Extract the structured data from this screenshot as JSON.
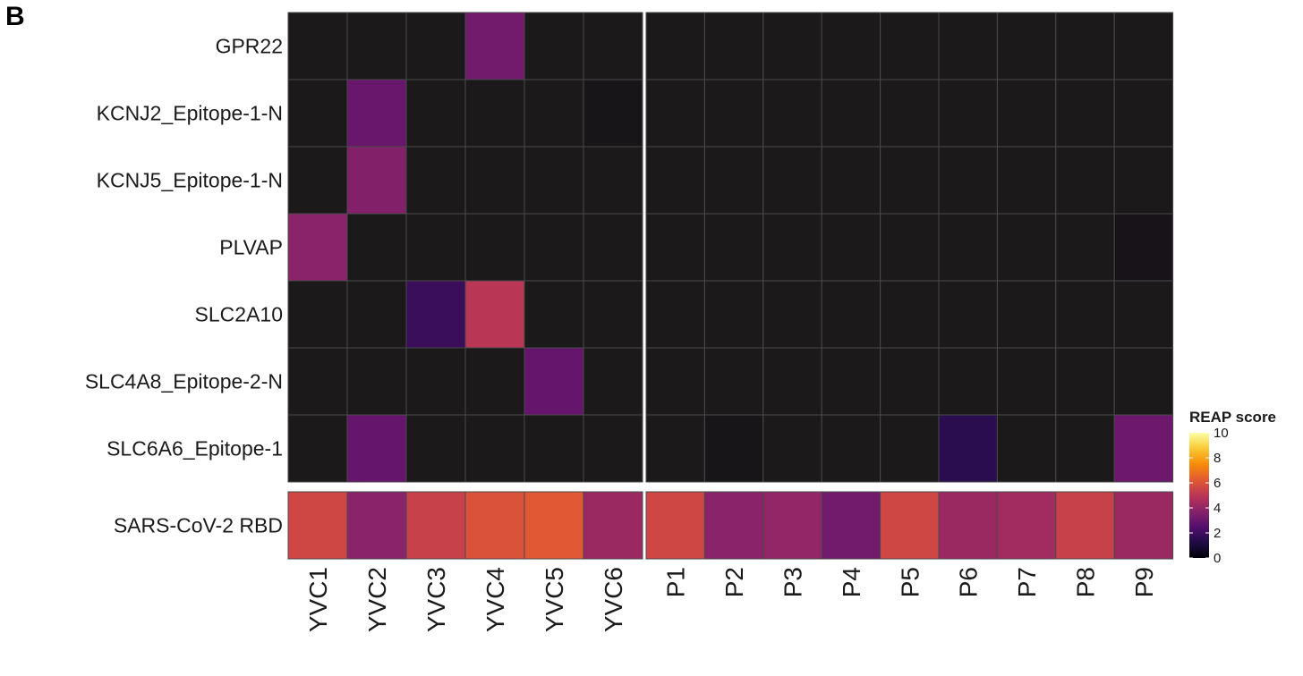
{
  "panel_label": "B",
  "chart_data": {
    "type": "heatmap",
    "title": "",
    "columns": [
      "YVC1",
      "YVC2",
      "YVC3",
      "YVC4",
      "YVC5",
      "YVC6",
      "P1",
      "P2",
      "P3",
      "P4",
      "P5",
      "P6",
      "P7",
      "P8",
      "P9"
    ],
    "column_groups": [
      {
        "columns": [
          "YVC1",
          "YVC2",
          "YVC3",
          "YVC4",
          "YVC5",
          "YVC6"
        ]
      },
      {
        "columns": [
          "P1",
          "P2",
          "P3",
          "P4",
          "P5",
          "P6",
          "P7",
          "P8",
          "P9"
        ]
      }
    ],
    "row_groups": [
      {
        "rows": [
          "GPR22",
          "KCNJ2_Epitope-1-N",
          "KCNJ5_Epitope-1-N",
          "PLVAP",
          "SLC2A10",
          "SLC4A8_Epitope-2-N",
          "SLC6A6_Epitope-1"
        ],
        "values": [
          [
            0.0,
            0.0,
            0.0,
            3.2,
            0.0,
            0.0,
            0.0,
            0.0,
            0.0,
            0.0,
            0.0,
            0.0,
            0.0,
            0.0,
            0.0
          ],
          [
            0.0,
            3.0,
            0.0,
            0.0,
            0.0,
            0.2,
            0.0,
            0.0,
            0.0,
            0.0,
            0.0,
            0.0,
            0.0,
            0.0,
            0.0
          ],
          [
            0.0,
            3.6,
            0.0,
            0.0,
            0.0,
            0.0,
            0.0,
            0.0,
            0.0,
            0.0,
            0.0,
            0.0,
            0.0,
            0.0,
            0.0
          ],
          [
            3.8,
            0.0,
            0.0,
            0.0,
            0.0,
            0.0,
            0.0,
            0.0,
            0.0,
            0.0,
            0.0,
            0.0,
            0.0,
            0.0,
            0.3
          ],
          [
            0.0,
            0.0,
            1.9,
            5.0,
            0.0,
            0.0,
            0.0,
            0.0,
            0.0,
            0.0,
            0.0,
            0.0,
            0.0,
            0.0,
            0.0
          ],
          [
            0.0,
            0.0,
            0.0,
            0.0,
            2.9,
            0.0,
            0.0,
            0.0,
            0.0,
            0.0,
            0.0,
            0.0,
            0.0,
            0.0,
            0.0
          ],
          [
            0.0,
            2.9,
            0.0,
            0.0,
            0.0,
            0.0,
            0.0,
            0.2,
            0.0,
            0.0,
            0.0,
            1.5,
            0.0,
            0.0,
            3.1
          ]
        ]
      },
      {
        "rows": [
          "SARS-CoV-2 RBD"
        ],
        "values": [
          [
            5.6,
            3.8,
            5.4,
            6.0,
            6.2,
            4.2,
            5.6,
            3.8,
            4.0,
            3.2,
            5.6,
            4.2,
            4.4,
            5.4,
            4.2
          ]
        ]
      }
    ],
    "legend": {
      "title": "REAP score",
      "ticks": [
        "10",
        "8",
        "6",
        "4",
        "2",
        "0"
      ],
      "tick_values": [
        10,
        8,
        6,
        4,
        2,
        0
      ],
      "range": [
        0,
        10
      ],
      "placement": "right",
      "colormap": "inferno"
    },
    "grid": true
  }
}
